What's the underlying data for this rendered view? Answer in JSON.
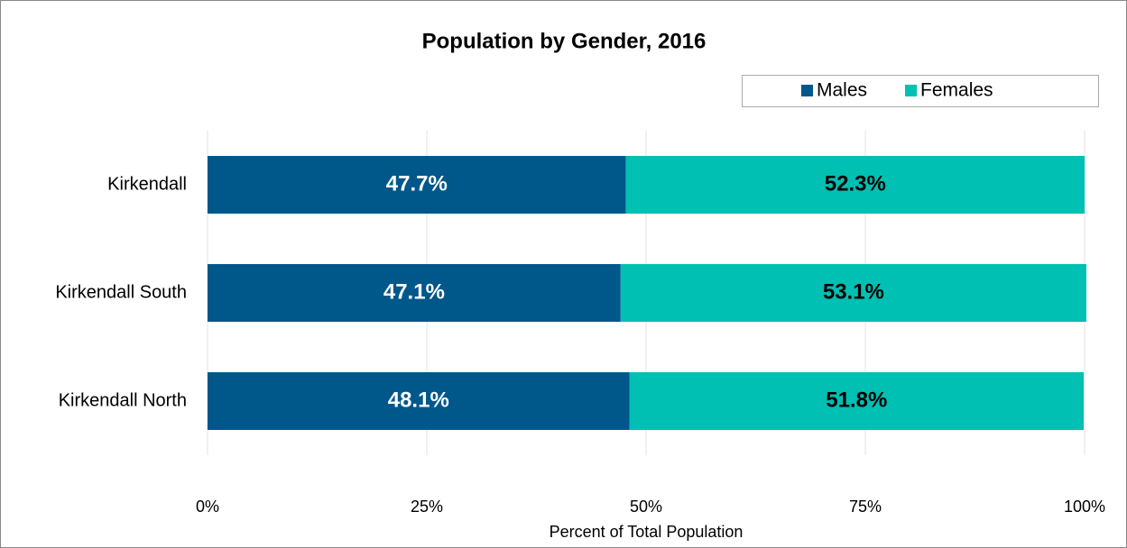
{
  "chart_data": {
    "type": "stacked-bar-horizontal",
    "title": "Population by Gender, 2016",
    "x_label": "Percent of Total Population",
    "categories": [
      "Kirkendall",
      "Kirkendall South",
      "Kirkendall North"
    ],
    "series": [
      {
        "name": "Males",
        "color": "#00578a",
        "values": [
          47.7,
          47.1,
          48.1
        ],
        "value_labels": [
          "47.7%",
          "47.1%",
          "48.1%"
        ]
      },
      {
        "name": "Females",
        "color": "#00bfb3",
        "values": [
          52.3,
          53.1,
          51.8
        ],
        "value_labels": [
          "52.3%",
          "53.1%",
          "51.8%"
        ]
      }
    ],
    "xlim": [
      0,
      100
    ],
    "xticks": [
      {
        "value": 0,
        "label": "0%"
      },
      {
        "value": 25,
        "label": "25%"
      },
      {
        "value": 50,
        "label": "50%"
      },
      {
        "value": 75,
        "label": "75%"
      },
      {
        "value": 100,
        "label": "100%"
      }
    ],
    "grid": true,
    "legend": "top-right"
  }
}
